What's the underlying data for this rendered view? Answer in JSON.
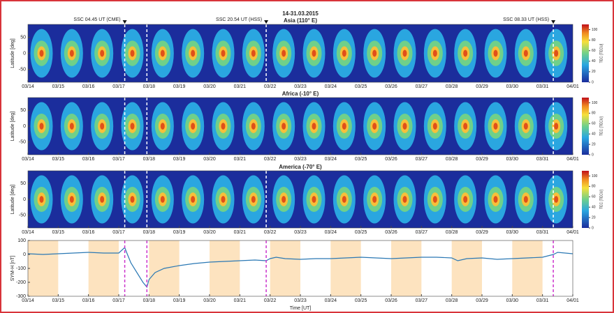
{
  "chart_data": [
    {
      "type": "heatmap",
      "suptitle": "14-31.03.2015",
      "title": "Asia (110° E)",
      "ylabel": "Latitude [deg]",
      "xlim": [
        0,
        18
      ],
      "xticks": [
        {
          "value": 0,
          "label": "03/14"
        },
        {
          "value": 1,
          "label": "03/15"
        },
        {
          "value": 2,
          "label": "03/16"
        },
        {
          "value": 3,
          "label": "03/17"
        },
        {
          "value": 4,
          "label": "03/18"
        },
        {
          "value": 5,
          "label": "03/19"
        },
        {
          "value": 6,
          "label": "03/20"
        },
        {
          "value": 7,
          "label": "03/21"
        },
        {
          "value": 8,
          "label": "03/22"
        },
        {
          "value": 9,
          "label": "03/23"
        },
        {
          "value": 10,
          "label": "03/24"
        },
        {
          "value": 11,
          "label": "03/25"
        },
        {
          "value": 12,
          "label": "03/26"
        },
        {
          "value": 13,
          "label": "03/27"
        },
        {
          "value": 14,
          "label": "03/28"
        },
        {
          "value": 15,
          "label": "03/29"
        },
        {
          "value": 16,
          "label": "03/30"
        },
        {
          "value": 17,
          "label": "03/31"
        },
        {
          "value": 18,
          "label": "04/01"
        }
      ],
      "ylim": [
        -90,
        90
      ],
      "yticks": [
        50,
        0,
        -50
      ],
      "colorbar": {
        "label": "TEC [TECU]",
        "lim": [
          0,
          110
        ],
        "ticks": [
          0,
          20,
          40,
          60,
          80,
          100
        ]
      },
      "markers": [
        3.198,
        3.93,
        7.871,
        17.356
      ],
      "marker_color": "#ffffff",
      "annotations": [
        {
          "x": 3.198,
          "label": "SSC 04.45 UT (CME)"
        },
        {
          "x": 7.871,
          "label": "SSC 20.54 UT (HSS)"
        },
        {
          "x": 17.356,
          "label": "SSC 08.33 UT (HSS)"
        }
      ]
    },
    {
      "type": "heatmap",
      "title": "Africa (-10° E)",
      "ylabel": "Latitude [deg]",
      "xlim": [
        0,
        18
      ],
      "xticks": [
        {
          "value": 0,
          "label": "03/14"
        },
        {
          "value": 1,
          "label": "03/15"
        },
        {
          "value": 2,
          "label": "03/16"
        },
        {
          "value": 3,
          "label": "03/17"
        },
        {
          "value": 4,
          "label": "03/18"
        },
        {
          "value": 5,
          "label": "03/19"
        },
        {
          "value": 6,
          "label": "03/20"
        },
        {
          "value": 7,
          "label": "03/21"
        },
        {
          "value": 8,
          "label": "03/22"
        },
        {
          "value": 9,
          "label": "03/23"
        },
        {
          "value": 10,
          "label": "03/24"
        },
        {
          "value": 11,
          "label": "03/25"
        },
        {
          "value": 12,
          "label": "03/26"
        },
        {
          "value": 13,
          "label": "03/27"
        },
        {
          "value": 14,
          "label": "03/28"
        },
        {
          "value": 15,
          "label": "03/29"
        },
        {
          "value": 16,
          "label": "03/30"
        },
        {
          "value": 17,
          "label": "03/31"
        },
        {
          "value": 18,
          "label": "04/01"
        }
      ],
      "ylim": [
        -90,
        90
      ],
      "yticks": [
        50,
        0,
        -50
      ],
      "colorbar": {
        "label": "TEC [TECU]",
        "lim": [
          0,
          110
        ],
        "ticks": [
          0,
          20,
          40,
          60,
          80,
          100
        ]
      },
      "markers": [
        3.198,
        3.93,
        17.356
      ],
      "marker_color": "#ffffff"
    },
    {
      "type": "heatmap",
      "title": "America (-70° E)",
      "ylabel": "Latitude [deg]",
      "xlim": [
        0,
        18
      ],
      "xticks": [
        {
          "value": 0,
          "label": "03/14"
        },
        {
          "value": 1,
          "label": "03/15"
        },
        {
          "value": 2,
          "label": "03/16"
        },
        {
          "value": 3,
          "label": "03/17"
        },
        {
          "value": 4,
          "label": "03/18"
        },
        {
          "value": 5,
          "label": "03/19"
        },
        {
          "value": 6,
          "label": "03/20"
        },
        {
          "value": 7,
          "label": "03/21"
        },
        {
          "value": 8,
          "label": "03/22"
        },
        {
          "value": 9,
          "label": "03/23"
        },
        {
          "value": 10,
          "label": "03/24"
        },
        {
          "value": 11,
          "label": "03/25"
        },
        {
          "value": 12,
          "label": "03/26"
        },
        {
          "value": 13,
          "label": "03/27"
        },
        {
          "value": 14,
          "label": "03/28"
        },
        {
          "value": 15,
          "label": "03/29"
        },
        {
          "value": 16,
          "label": "03/30"
        },
        {
          "value": 17,
          "label": "03/31"
        },
        {
          "value": 18,
          "label": "04/01"
        }
      ],
      "ylim": [
        -90,
        90
      ],
      "yticks": [
        50,
        0,
        -50
      ],
      "colorbar": {
        "label": "TEC [TECU]",
        "lim": [
          0,
          110
        ],
        "ticks": [
          0,
          20,
          40,
          60,
          80,
          100
        ]
      },
      "markers": [
        3.198,
        3.93,
        7.871,
        17.356
      ],
      "marker_color": "#ffffff"
    },
    {
      "type": "line",
      "ylabel": "SYM-H [nT]",
      "xlabel": "Time [UT]",
      "xlim": [
        0,
        18
      ],
      "xticks": [
        {
          "value": 0,
          "label": "03/14"
        },
        {
          "value": 1,
          "label": "03/15"
        },
        {
          "value": 2,
          "label": "03/16"
        },
        {
          "value": 3,
          "label": "03/17"
        },
        {
          "value": 4,
          "label": "03/18"
        },
        {
          "value": 5,
          "label": "03/19"
        },
        {
          "value": 6,
          "label": "03/20"
        },
        {
          "value": 7,
          "label": "03/21"
        },
        {
          "value": 8,
          "label": "03/22"
        },
        {
          "value": 9,
          "label": "03/23"
        },
        {
          "value": 10,
          "label": "03/24"
        },
        {
          "value": 11,
          "label": "03/25"
        },
        {
          "value": 12,
          "label": "03/26"
        },
        {
          "value": 13,
          "label": "03/27"
        },
        {
          "value": 14,
          "label": "03/28"
        },
        {
          "value": 15,
          "label": "03/29"
        },
        {
          "value": 16,
          "label": "03/30"
        },
        {
          "value": 17,
          "label": "03/31"
        },
        {
          "value": 18,
          "label": "04/01"
        }
      ],
      "ylim": [
        -300,
        100
      ],
      "yticks": [
        100,
        0,
        -100,
        -200,
        -300
      ],
      "bands": [
        0,
        2,
        4,
        6,
        8,
        10,
        12,
        14,
        16
      ],
      "band_color": "#fde3bf",
      "markers": [
        3.198,
        3.93,
        7.871,
        17.356
      ],
      "marker_color": "#cc33cc",
      "series": [
        {
          "color": "#2a78b4",
          "x": [
            0,
            0.5,
            1,
            1.5,
            2,
            2.5,
            3,
            3.198,
            3.25,
            3.4,
            3.6,
            3.8,
            3.93,
            4,
            4.2,
            4.5,
            5,
            5.5,
            6,
            6.5,
            7,
            7.5,
            7.87,
            8,
            8.2,
            8.5,
            9,
            9.5,
            10,
            10.5,
            11,
            11.5,
            12,
            12.5,
            13,
            13.5,
            14,
            14.2,
            14.5,
            15,
            15.5,
            16,
            16.5,
            17,
            17.36,
            17.5,
            18
          ],
          "values": [
            5,
            0,
            5,
            10,
            15,
            10,
            10,
            50,
            20,
            -60,
            -130,
            -200,
            -234,
            -180,
            -130,
            -100,
            -80,
            -65,
            -55,
            -50,
            -45,
            -40,
            -45,
            -30,
            -20,
            -30,
            -35,
            -30,
            -30,
            -25,
            -20,
            -25,
            -30,
            -25,
            -20,
            -20,
            -25,
            -45,
            -30,
            -25,
            -35,
            -30,
            -25,
            -20,
            0,
            15,
            5
          ]
        }
      ]
    }
  ]
}
